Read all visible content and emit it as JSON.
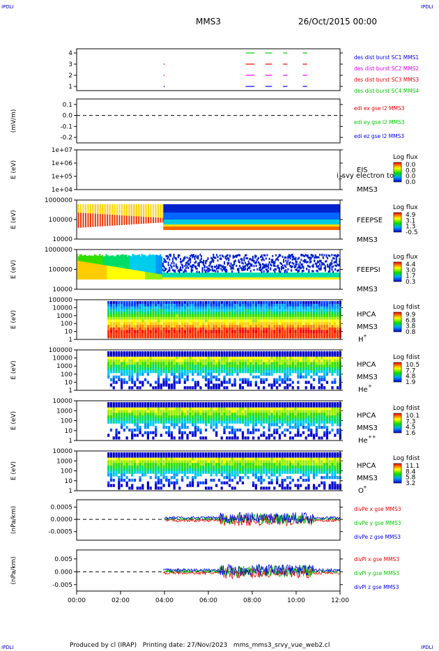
{
  "header": {
    "corner_label": "IPDLI",
    "spacecraft": "MMS3",
    "date": "26/Oct/2015 00:00"
  },
  "footer": {
    "text": "Produced by cl (IRAP)   Printing date: 27/Nov/2023   mms_mms3_srvy_vue_web2.cl"
  },
  "chart_data": {
    "type": "line",
    "x": [
      "00:00",
      "02:00",
      "04:00",
      "06:00",
      "08:00",
      "10:00",
      "12:00"
    ],
    "xlim_hours": [
      0,
      12
    ],
    "panels": [
      {
        "id": "burst",
        "ylabel": "",
        "yticks": [
          "4",
          "3",
          "2",
          "1"
        ],
        "series": [
          {
            "name": "des dist burst SC1 MMS1",
            "color": "#0000ee",
            "y": 1,
            "segments": [
              [
                7.7,
                8.1
              ],
              [
                8.6,
                8.9
              ],
              [
                9.4,
                9.6
              ],
              [
                10.3,
                10.5
              ]
            ]
          },
          {
            "name": "des dist burst SC2 MMS2",
            "color": "#ee00ee",
            "y": 2,
            "segments": [
              [
                7.7,
                8.1
              ],
              [
                8.6,
                8.9
              ],
              [
                9.4,
                9.6
              ],
              [
                10.3,
                10.5
              ]
            ]
          },
          {
            "name": "des dist burst SC3 MMS3",
            "color": "#ee0000",
            "y": 3,
            "segments": [
              [
                7.7,
                8.1
              ],
              [
                8.6,
                8.9
              ],
              [
                9.4,
                9.6
              ],
              [
                10.3,
                10.5
              ]
            ]
          },
          {
            "name": "des dist burst SC4 MMS4",
            "color": "#00cc00",
            "y": 4,
            "segments": [
              [
                7.7,
                8.1
              ],
              [
                8.6,
                8.9
              ],
              [
                9.4,
                9.6
              ],
              [
                10.3,
                10.5
              ]
            ]
          }
        ]
      },
      {
        "id": "edi",
        "ylabel": "(mV/m)",
        "yticks": [
          "0.1",
          "0.0",
          "-0.1",
          "-0.2"
        ],
        "ylim": [
          -0.25,
          0.15
        ],
        "series": [
          {
            "name": "edi ex gse l2 MMS3",
            "color": "#ee0000"
          },
          {
            "name": "edi ey gse l2 MMS3",
            "color": "#00cc00"
          },
          {
            "name": "edi ez gse l2 MMS3",
            "color": "#0000ee"
          }
        ]
      },
      {
        "id": "eis",
        "ylabel": "E (eV)",
        "yticks": [
          "1e+07",
          "1e+06",
          "1e+05",
          "1e+04"
        ],
        "labels": [
          "EIS",
          "MMS3"
        ],
        "overflow_label": "i_svy electron to",
        "colorbar": {
          "title": "Log flux",
          "ticks": [
            "0.0",
            "0.0",
            "0.0",
            "0.0"
          ]
        }
      },
      {
        "id": "feepse",
        "ylabel": "E (eV)",
        "yticks": [
          "1000000",
          "100000",
          "10000"
        ],
        "labels": [
          "FEEPSE",
          "MMS3"
        ],
        "colorbar": {
          "title": "Log flux",
          "ticks": [
            "4.9",
            "3.1",
            "1.3",
            "-0.5"
          ]
        }
      },
      {
        "id": "feepsi",
        "ylabel": "E (eV)",
        "yticks": [
          "1000000",
          "100000",
          "10000"
        ],
        "labels": [
          "FEEPSI",
          "MMS3"
        ],
        "colorbar": {
          "title": "Log flux",
          "ticks": [
            "4.4",
            "3.0",
            "1.7",
            "0.3"
          ]
        }
      },
      {
        "id": "hpca_h",
        "ylabel": "E (eV)",
        "yticks": [
          "100000",
          "10000",
          "1000",
          "100",
          "10",
          "1"
        ],
        "labels": [
          "HPCA",
          "MMS3",
          "H",
          "+"
        ],
        "colorbar": {
          "title": "Log fdist",
          "ticks": [
            "9.9",
            "6.8",
            "3.8",
            "0.8"
          ]
        }
      },
      {
        "id": "hpca_he",
        "ylabel": "E (eV)",
        "yticks": [
          "100000",
          "10000",
          "1000",
          "100",
          "10",
          "1"
        ],
        "labels": [
          "HPCA",
          "MMS3",
          "He",
          "+"
        ],
        "colorbar": {
          "title": "Log fdist",
          "ticks": [
            "10.5",
            "7.7",
            "4.8",
            "1.9"
          ]
        }
      },
      {
        "id": "hpca_hepp",
        "ylabel": "E (eV)",
        "yticks": [
          "10000",
          "1000",
          "100",
          "10",
          "1"
        ],
        "labels": [
          "HPCA",
          "MMS3",
          "He",
          "++"
        ],
        "colorbar": {
          "title": "Log fdist",
          "ticks": [
            "10.1",
            "7.3",
            "4.5",
            "1.6"
          ]
        }
      },
      {
        "id": "hpca_o",
        "ylabel": "E (eV)",
        "yticks": [
          "10000",
          "1000",
          "100",
          "10",
          "1"
        ],
        "labels": [
          "HPCA",
          "MMS3",
          "O",
          "+"
        ],
        "colorbar": {
          "title": "Log fdist",
          "ticks": [
            "11.1",
            "8.4",
            "5.8",
            "3.2"
          ]
        }
      },
      {
        "id": "divpe",
        "ylabel": "(nPa/km)",
        "yticks": [
          "0.0005",
          "0.0000",
          "-0.0005"
        ],
        "ylim": [
          -0.00085,
          0.0008
        ],
        "series": [
          {
            "name": "divPe x gse MMS3",
            "color": "#ee0000"
          },
          {
            "name": "divPe y gse MMS3",
            "color": "#00cc00"
          },
          {
            "name": "divPe z gse MMS3",
            "color": "#0000ee"
          }
        ]
      },
      {
        "id": "divpi",
        "ylabel": "(nPa/km)",
        "yticks": [
          "0.005",
          "0.000",
          "-0.005"
        ],
        "ylim": [
          -0.0075,
          0.0085
        ],
        "series": [
          {
            "name": "divPi x gse MMS3",
            "color": "#ee0000"
          },
          {
            "name": "divPi y gse MMS3",
            "color": "#00cc00"
          },
          {
            "name": "divPi z gse MMS3",
            "color": "#0000ee"
          }
        ]
      }
    ]
  }
}
